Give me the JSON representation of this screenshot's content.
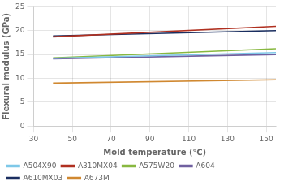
{
  "chart_data": {
    "type": "line",
    "xlabel": "Mold temperature (℃)",
    "ylabel": "Flexural modulus (GPa)",
    "xlim": [
      30,
      155
    ],
    "ylim": [
      0,
      25
    ],
    "xticks": [
      30,
      50,
      70,
      90,
      110,
      130,
      150
    ],
    "yticks": [
      0,
      5,
      10,
      15,
      20,
      25
    ],
    "grid": true,
    "legend": "lower left",
    "series": [
      {
        "name": "A504X90",
        "color": "#7ec8e8",
        "x": [
          40,
          155
        ],
        "values": [
          14.2,
          15.4
        ]
      },
      {
        "name": "A310MX04",
        "color": "#b03020",
        "x": [
          40,
          155
        ],
        "values": [
          18.7,
          20.9
        ]
      },
      {
        "name": "A575W20",
        "color": "#88b840",
        "x": [
          40,
          155
        ],
        "values": [
          14.3,
          16.2
        ]
      },
      {
        "name": "A604",
        "color": "#7060a0",
        "x": [
          40,
          155
        ],
        "values": [
          14.1,
          15.0
        ]
      },
      {
        "name": "A610MX03",
        "color": "#1a2e60",
        "x": [
          40,
          155
        ],
        "values": [
          18.9,
          20.0
        ]
      },
      {
        "name": "A673M",
        "color": "#d08830",
        "x": [
          40,
          155
        ],
        "values": [
          9.0,
          9.7
        ]
      }
    ]
  }
}
